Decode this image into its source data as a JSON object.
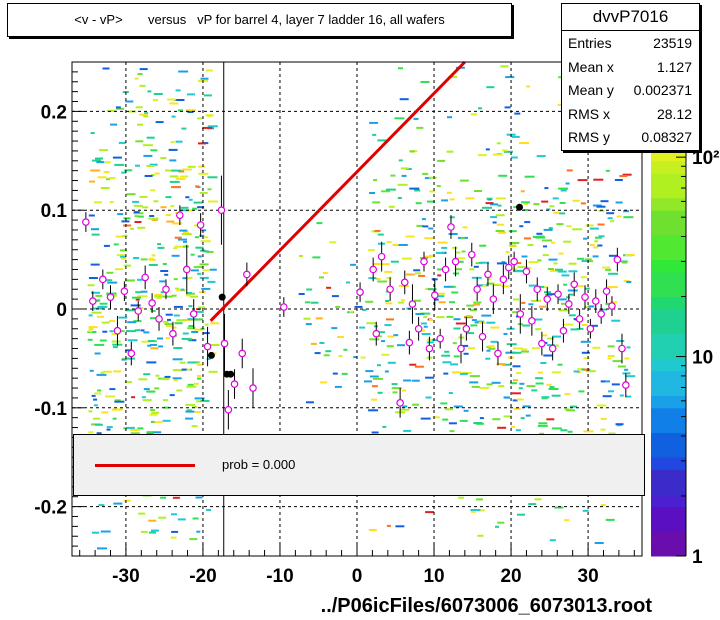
{
  "title": "<v - vP>       versus   vP for barrel 4, layer 7 ladder 16, all wafers",
  "stats": {
    "name": "dvvP7016",
    "rows": [
      {
        "label": "Entries",
        "value": "23519"
      },
      {
        "label": "Mean x",
        "value": "1.127"
      },
      {
        "label": "Mean y",
        "value": "0.002371"
      },
      {
        "label": "RMS x",
        "value": "28.12"
      },
      {
        "label": "RMS y",
        "value": "0.08327"
      }
    ]
  },
  "legend": {
    "label": "prob = 0.000",
    "color": "#e00000"
  },
  "chart_data": {
    "type": "scatter",
    "title": "<v - vP>       versus   vP for barrel 4, layer 7 ladder 16, all wafers",
    "xlabel": "../P06icFiles/6073006_6073013.root",
    "ylabel": "",
    "xlim": [
      -37,
      37
    ],
    "ylim": [
      -0.25,
      0.25
    ],
    "xticks": [
      -30,
      -20,
      -10,
      0,
      10,
      20,
      30
    ],
    "xtick_labels": [
      "-30",
      "-20",
      "-10",
      "0",
      "10",
      "20",
      "30"
    ],
    "yticks": [
      -0.2,
      -0.1,
      0,
      0.1,
      0.2
    ],
    "ytick_labels": [
      "-0.2",
      "-0.1",
      "0",
      "0.1",
      "0.2"
    ],
    "grid": true,
    "colorbar": {
      "scale": "log",
      "tick_labels": [
        "1",
        "10",
        "10²"
      ],
      "tick_values": [
        1,
        10,
        100
      ]
    },
    "fit_line": {
      "x": [
        -19,
        14
      ],
      "y": [
        -0.012,
        0.25
      ],
      "color": "#e00000"
    },
    "profile_points": [
      {
        "x": -35.2,
        "y": 0.088,
        "err": 0.01
      },
      {
        "x": -34.3,
        "y": 0.008,
        "err": 0.01
      },
      {
        "x": -33.0,
        "y": 0.03,
        "err": 0.01
      },
      {
        "x": -32.0,
        "y": 0.012,
        "err": 0.012
      },
      {
        "x": -31.1,
        "y": -0.022,
        "err": 0.015
      },
      {
        "x": -30.2,
        "y": 0.018,
        "err": 0.01
      },
      {
        "x": -29.3,
        "y": -0.045,
        "err": 0.012
      },
      {
        "x": -28.4,
        "y": -0.002,
        "err": 0.01
      },
      {
        "x": -27.5,
        "y": 0.032,
        "err": 0.012
      },
      {
        "x": -26.6,
        "y": 0.006,
        "err": 0.01
      },
      {
        "x": -25.7,
        "y": -0.01,
        "err": 0.012
      },
      {
        "x": -24.8,
        "y": 0.02,
        "err": 0.01
      },
      {
        "x": -23.9,
        "y": -0.025,
        "err": 0.012
      },
      {
        "x": -23.0,
        "y": 0.095,
        "err": 0.01
      },
      {
        "x": -22.1,
        "y": 0.04,
        "err": 0.025
      },
      {
        "x": -21.2,
        "y": -0.005,
        "err": 0.015
      },
      {
        "x": -20.3,
        "y": 0.085,
        "err": 0.012
      },
      {
        "x": -19.4,
        "y": -0.038,
        "err": 0.02
      },
      {
        "x": -17.6,
        "y": 0.1,
        "err": 0.035
      },
      {
        "x": -17.2,
        "y": -0.035,
        "err": 0.03
      },
      {
        "x": -16.7,
        "y": -0.102,
        "err": 0.02
      },
      {
        "x": -15.9,
        "y": -0.076,
        "err": 0.015
      },
      {
        "x": -14.9,
        "y": -0.045,
        "err": 0.015
      },
      {
        "x": -14.3,
        "y": 0.035,
        "err": 0.012
      },
      {
        "x": -13.5,
        "y": -0.08,
        "err": 0.02
      },
      {
        "x": -9.5,
        "y": 0.002,
        "err": 0.01
      },
      {
        "x": 0.4,
        "y": 0.017,
        "err": 0.01
      },
      {
        "x": 2.1,
        "y": 0.04,
        "err": 0.012
      },
      {
        "x": 2.5,
        "y": -0.025,
        "err": 0.012
      },
      {
        "x": 3.2,
        "y": 0.053,
        "err": 0.015
      },
      {
        "x": 4.3,
        "y": 0.02,
        "err": 0.012
      },
      {
        "x": 5.6,
        "y": -0.095,
        "err": 0.015
      },
      {
        "x": 6.2,
        "y": 0.027,
        "err": 0.012
      },
      {
        "x": 6.8,
        "y": -0.034,
        "err": 0.012
      },
      {
        "x": 7.2,
        "y": 0.005,
        "err": 0.02
      },
      {
        "x": 8.0,
        "y": -0.02,
        "err": 0.012
      },
      {
        "x": 8.7,
        "y": 0.048,
        "err": 0.01
      },
      {
        "x": 9.4,
        "y": -0.04,
        "err": 0.012
      },
      {
        "x": 10.1,
        "y": 0.014,
        "err": 0.015
      },
      {
        "x": 10.8,
        "y": -0.03,
        "err": 0.01
      },
      {
        "x": 11.5,
        "y": 0.04,
        "err": 0.012
      },
      {
        "x": 12.2,
        "y": 0.083,
        "err": 0.012
      },
      {
        "x": 12.8,
        "y": 0.048,
        "err": 0.015
      },
      {
        "x": 13.5,
        "y": -0.04,
        "err": 0.015
      },
      {
        "x": 14.2,
        "y": -0.02,
        "err": 0.012
      },
      {
        "x": 14.9,
        "y": 0.055,
        "err": 0.012
      },
      {
        "x": 15.6,
        "y": 0.02,
        "err": 0.012
      },
      {
        "x": 16.3,
        "y": -0.028,
        "err": 0.015
      },
      {
        "x": 17.0,
        "y": 0.035,
        "err": 0.012
      },
      {
        "x": 17.7,
        "y": 0.01,
        "err": 0.015
      },
      {
        "x": 18.3,
        "y": -0.045,
        "err": 0.012
      },
      {
        "x": 19.0,
        "y": 0.03,
        "err": 0.015
      },
      {
        "x": 19.7,
        "y": 0.042,
        "err": 0.012
      },
      {
        "x": 20.4,
        "y": 0.048,
        "err": 0.01
      },
      {
        "x": 21.2,
        "y": -0.005,
        "err": 0.02
      },
      {
        "x": 22.0,
        "y": 0.038,
        "err": 0.012
      },
      {
        "x": 22.7,
        "y": -0.012,
        "err": 0.015
      },
      {
        "x": 23.4,
        "y": 0.02,
        "err": 0.012
      },
      {
        "x": 24.0,
        "y": -0.035,
        "err": 0.012
      },
      {
        "x": 24.7,
        "y": 0.01,
        "err": 0.012
      },
      {
        "x": 25.4,
        "y": -0.04,
        "err": 0.012
      },
      {
        "x": 26.1,
        "y": 0.015,
        "err": 0.01
      },
      {
        "x": 26.8,
        "y": -0.022,
        "err": 0.012
      },
      {
        "x": 27.5,
        "y": 0.005,
        "err": 0.01
      },
      {
        "x": 28.2,
        "y": 0.025,
        "err": 0.012
      },
      {
        "x": 28.9,
        "y": -0.01,
        "err": 0.01
      },
      {
        "x": 29.6,
        "y": 0.012,
        "err": 0.012
      },
      {
        "x": 30.3,
        "y": -0.02,
        "err": 0.01
      },
      {
        "x": 31.0,
        "y": 0.008,
        "err": 0.012
      },
      {
        "x": 31.7,
        "y": -0.005,
        "err": 0.01
      },
      {
        "x": 32.4,
        "y": 0.018,
        "err": 0.012
      },
      {
        "x": 33.1,
        "y": 0.003,
        "err": 0.01
      },
      {
        "x": 33.8,
        "y": 0.05,
        "err": 0.012
      },
      {
        "x": 34.4,
        "y": -0.04,
        "err": 0.015
      },
      {
        "x": 34.9,
        "y": -0.077,
        "err": 0.012
      }
    ],
    "black_points": [
      {
        "x": -17.5,
        "y": 0.012
      },
      {
        "x": -18.9,
        "y": -0.047
      },
      {
        "x": -16.9,
        "y": -0.066
      },
      {
        "x": -16.4,
        "y": -0.066
      },
      {
        "x": 21.1,
        "y": 0.103
      }
    ]
  }
}
